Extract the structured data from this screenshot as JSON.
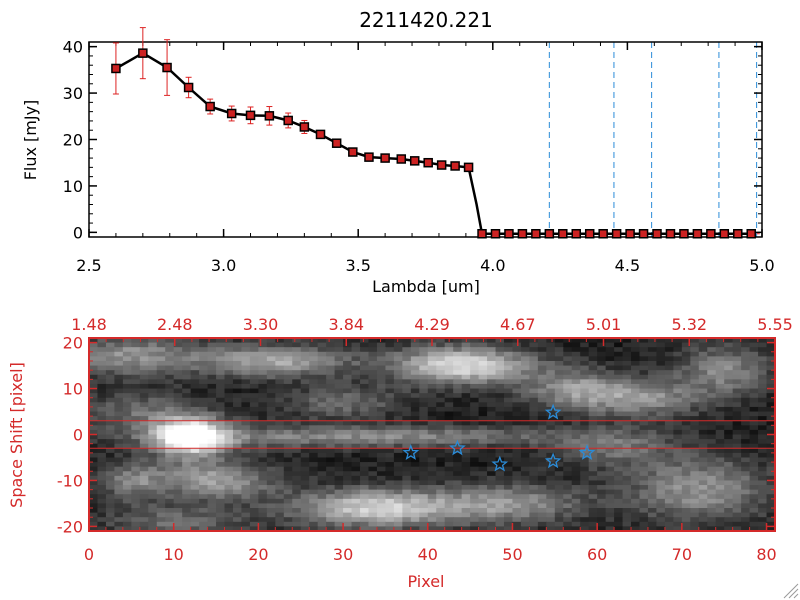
{
  "chart_data": [
    {
      "type": "line",
      "title": "2211420.221",
      "xlabel": "Lambda [um]",
      "ylabel": "Flux [mJy]",
      "xlim": [
        2.5,
        5.0
      ],
      "ylim": [
        -1,
        41
      ],
      "xticks": [
        2.5,
        3.0,
        3.5,
        4.0,
        4.5,
        5.0
      ],
      "xtick_labels": [
        "2.5",
        "3.0",
        "3.5",
        "4.0",
        "4.5",
        "5.0"
      ],
      "yticks": [
        0,
        10,
        20,
        30,
        40
      ],
      "ytick_labels": [
        "0",
        "10",
        "20",
        "30",
        "40"
      ],
      "series": [
        {
          "name": "flux",
          "color": "#000000",
          "marker_color": "#cc2222",
          "errorbar_color": "#dd2222",
          "x": [
            2.6,
            2.7,
            2.79,
            2.87,
            2.95,
            3.03,
            3.1,
            3.17,
            3.24,
            3.3,
            3.36,
            3.42,
            3.48,
            3.54,
            3.6,
            3.66,
            3.71,
            3.76,
            3.81,
            3.86,
            3.91,
            3.94,
            3.96,
            4.01,
            4.06,
            4.11,
            4.16,
            4.21,
            4.26,
            4.31,
            4.36,
            4.41,
            4.46,
            4.51,
            4.56,
            4.61,
            4.66,
            4.71,
            4.76,
            4.81,
            4.86,
            4.91,
            4.96
          ],
          "values": [
            35.3,
            38.6,
            35.5,
            31.2,
            27.1,
            25.6,
            25.2,
            25.1,
            24.1,
            22.7,
            21.1,
            19.2,
            17.3,
            16.2,
            16.0,
            15.8,
            15.4,
            15.0,
            14.5,
            14.3,
            14.0,
            6.0,
            -0.3,
            -0.3,
            -0.3,
            -0.3,
            -0.3,
            -0.3,
            -0.3,
            -0.3,
            -0.3,
            -0.3,
            -0.3,
            -0.3,
            -0.3,
            -0.3,
            -0.3,
            -0.3,
            -0.3,
            -0.3,
            -0.3,
            -0.3,
            -0.3
          ],
          "errors": [
            5.5,
            5.5,
            6.0,
            2.2,
            1.6,
            1.6,
            1.8,
            2.0,
            1.6,
            1.4,
            0.8,
            0.7,
            0.7,
            0.5,
            0.5,
            0.5,
            0.4,
            0.4,
            0.4,
            0.4,
            0.4,
            0,
            0,
            0,
            0,
            0,
            0,
            0,
            0,
            0,
            0,
            0,
            0,
            0,
            0,
            0,
            0,
            0,
            0,
            0,
            0,
            0,
            0
          ],
          "markers": [
            true,
            true,
            true,
            true,
            true,
            true,
            true,
            true,
            true,
            true,
            true,
            true,
            true,
            true,
            true,
            true,
            true,
            true,
            true,
            true,
            true,
            false,
            true,
            true,
            true,
            true,
            true,
            true,
            true,
            true,
            true,
            true,
            true,
            true,
            true,
            true,
            true,
            true,
            true,
            true,
            true,
            true,
            true
          ]
        }
      ],
      "vlines": [
        4.21,
        4.45,
        4.59,
        4.84,
        4.98
      ],
      "vline_color": "#2b8cd8"
    },
    {
      "type": "heatmap",
      "xlabel": "Pixel",
      "ylabel": "Space Shift [pixel]",
      "xlim": [
        0,
        81
      ],
      "ylim": [
        -21,
        21
      ],
      "xticks": [
        0,
        10,
        20,
        30,
        40,
        50,
        60,
        70,
        80
      ],
      "xtick_labels": [
        "0",
        "10",
        "20",
        "30",
        "40",
        "50",
        "60",
        "70",
        "80"
      ],
      "yticks": [
        -20,
        -10,
        0,
        10,
        20
      ],
      "ytick_labels": [
        "-20",
        "-10",
        "0",
        "10",
        "20"
      ],
      "top_axis_labels": [
        "1.48",
        "2.48",
        "3.30",
        "3.84",
        "4.29",
        "4.67",
        "5.01",
        "5.32",
        "5.55"
      ],
      "axis_color": "#d42a2a",
      "aperture_lines": [
        3,
        -3
      ],
      "star_color": "#2b8cd8",
      "stars": [
        {
          "x": 38,
          "y": -4
        },
        {
          "x": 43.5,
          "y": -3
        },
        {
          "x": 48.5,
          "y": -6.5
        },
        {
          "x": 54.8,
          "y": 4.8
        },
        {
          "x": 54.8,
          "y": -5.8
        },
        {
          "x": 58.8,
          "y": -4
        }
      ],
      "bright_features": [
        {
          "x": 12,
          "y": -0.5,
          "sx": 3,
          "sy": 3,
          "v": 1.0
        },
        {
          "x": 27,
          "y": -0.5,
          "sx": 16,
          "sy": 1.8,
          "v": 0.35
        },
        {
          "x": 45,
          "y": -0.5,
          "sx": 12,
          "sy": 1.5,
          "v": 0.15
        },
        {
          "x": 44,
          "y": 15,
          "sx": 6,
          "sy": 3,
          "v": 0.75
        },
        {
          "x": 22,
          "y": 16,
          "sx": 6,
          "sy": 2.5,
          "v": 0.55
        },
        {
          "x": 5,
          "y": 17,
          "sx": 6,
          "sy": 3,
          "v": 0.45
        },
        {
          "x": 34,
          "y": -16,
          "sx": 7,
          "sy": 3,
          "v": 0.7
        },
        {
          "x": 50,
          "y": -15,
          "sx": 6,
          "sy": 3,
          "v": 0.45
        },
        {
          "x": 15,
          "y": -10,
          "sx": 5,
          "sy": 3,
          "v": 0.5
        },
        {
          "x": 5,
          "y": -10,
          "sx": 3,
          "sy": 3,
          "v": 0.35
        },
        {
          "x": 57,
          "y": 10,
          "sx": 4,
          "sy": 3,
          "v": 0.4
        },
        {
          "x": 65,
          "y": 8,
          "sx": 5,
          "sy": 3,
          "v": 0.45
        },
        {
          "x": 72,
          "y": -12,
          "sx": 6,
          "sy": 5,
          "v": 0.45
        },
        {
          "x": 75,
          "y": 14,
          "sx": 4,
          "sy": 4,
          "v": 0.4
        },
        {
          "x": 6,
          "y": 5,
          "sx": 5,
          "sy": 3,
          "v": 0.3
        },
        {
          "x": 30,
          "y": 7,
          "sx": 5,
          "sy": 2.5,
          "v": 0.3
        },
        {
          "x": 62,
          "y": -3,
          "sx": 5,
          "sy": 3,
          "v": 0.3
        },
        {
          "x": 10,
          "y": -19,
          "sx": 6,
          "sy": 2.5,
          "v": 0.3
        }
      ]
    }
  ]
}
